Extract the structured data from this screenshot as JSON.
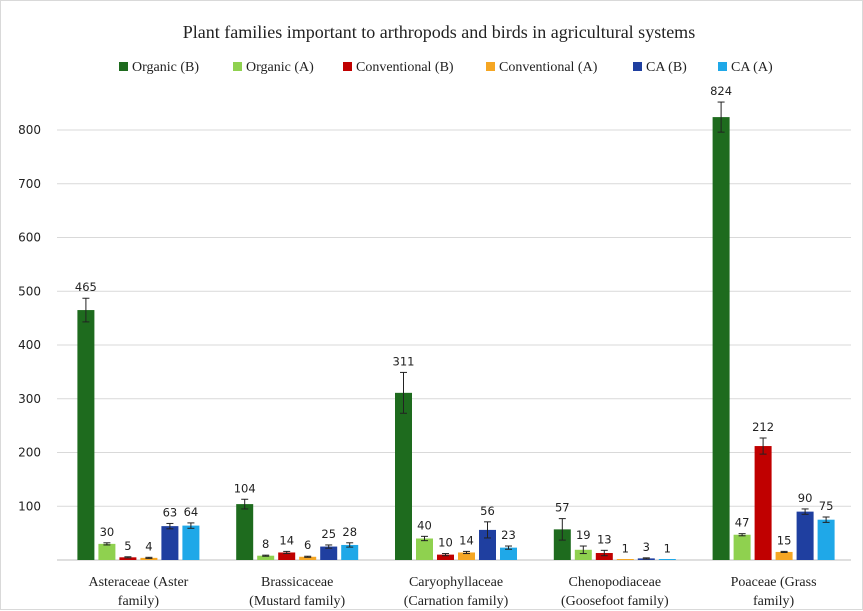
{
  "chart_data": {
    "type": "bar",
    "title": "Plant families important to arthropods and birds in agricultural systems",
    "xlabel": "",
    "ylabel": "",
    "ylim": [
      0,
      850
    ],
    "yticks": [
      100,
      200,
      300,
      400,
      500,
      600,
      700,
      800
    ],
    "grid": true,
    "legend_position": "top",
    "categories": [
      [
        "Asteraceae (Aster",
        "family)"
      ],
      [
        "Brassicaceae",
        "(Mustard family)"
      ],
      [
        "Caryophyllaceae",
        "(Carnation family)"
      ],
      [
        "Chenopodiaceae",
        "(Goosefoot family)"
      ],
      [
        "Poaceae (Grass",
        "family)"
      ]
    ],
    "series": [
      {
        "name": "Organic (B)",
        "color": "#1e6b1e",
        "values": [
          465,
          104,
          311,
          57,
          824
        ],
        "errors": [
          22,
          9,
          38,
          20,
          28
        ]
      },
      {
        "name": "Organic (A)",
        "color": "#8fd14f",
        "values": [
          30,
          8,
          40,
          19,
          47
        ],
        "errors": [
          2,
          1,
          4,
          7,
          2
        ]
      },
      {
        "name": "Conventional (B)",
        "color": "#c00000",
        "values": [
          5,
          14,
          10,
          13,
          212
        ],
        "errors": [
          1,
          2,
          2,
          5,
          15
        ]
      },
      {
        "name": "Conventional (A)",
        "color": "#f5a623",
        "values": [
          4,
          6,
          14,
          1,
          15
        ],
        "errors": [
          1,
          1,
          2,
          0,
          1
        ]
      },
      {
        "name": "CA (B)",
        "color": "#1f3fa0",
        "values": [
          63,
          25,
          56,
          3,
          90
        ],
        "errors": [
          5,
          3,
          15,
          1,
          5
        ]
      },
      {
        "name": "CA (A)",
        "color": "#1fa8e8",
        "values": [
          64,
          28,
          23,
          1,
          75
        ],
        "errors": [
          5,
          4,
          3,
          0,
          5
        ]
      }
    ]
  }
}
